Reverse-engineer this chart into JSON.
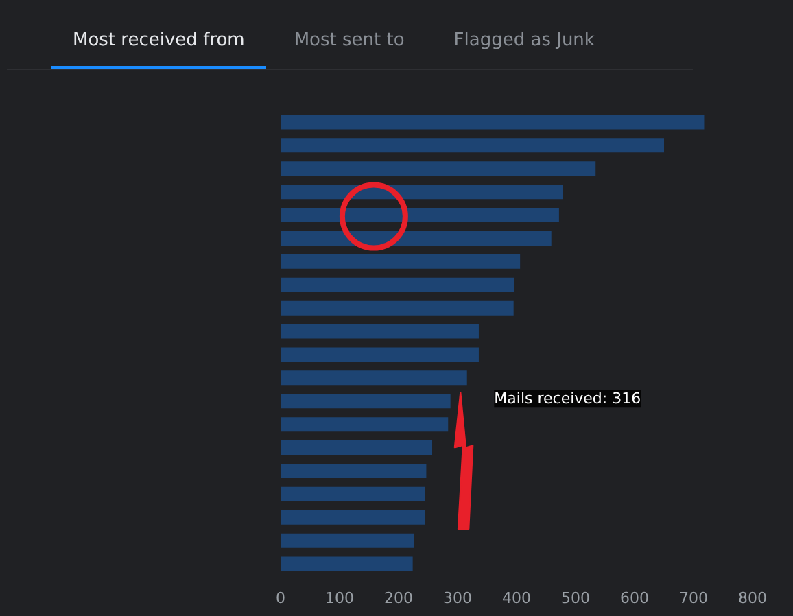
{
  "chart_data": {
    "type": "bar",
    "orientation": "horizontal",
    "title": "Most received from",
    "categories": [
      null,
      null,
      null,
      null,
      null,
      null,
      null,
      null,
      null,
      null,
      null,
      null,
      null,
      null,
      null,
      null,
      null,
      null,
      null,
      null
    ],
    "series": [
      {
        "color": "#1d4473",
        "values": [
          718,
          650,
          534,
          478,
          472,
          459,
          406,
          396,
          395,
          336,
          336,
          316,
          288,
          284,
          257,
          247,
          245,
          245,
          226,
          224
        ]
      }
    ],
    "xlim": [
      0,
      800
    ],
    "xticks": [
      0,
      100,
      200,
      300,
      400,
      500,
      600,
      700,
      800
    ],
    "grid": false,
    "annotations": [
      "Most sent to",
      "Flagged as Junk",
      "Mails received: 316"
    ]
  }
}
